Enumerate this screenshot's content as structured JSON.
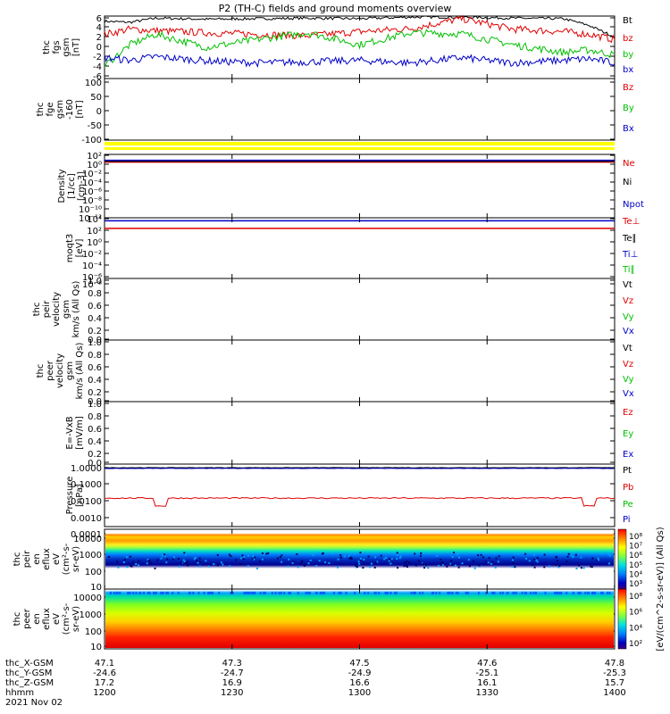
{
  "title": "P2 (TH-C) fields and ground moments overview",
  "date_label": "2021 Nov 02",
  "chart_data": [
    {
      "type": "line",
      "ylabel": [
        "thc",
        "fgs",
        "gsm",
        "[nT]"
      ],
      "y_ticks": [
        "6",
        "4",
        "2",
        "0",
        "-2",
        "-4",
        "-6"
      ],
      "ylim": [
        -6,
        6
      ],
      "legend": [
        "Bt",
        "bz",
        "by",
        "bx"
      ],
      "colors": [
        "#000000",
        "#e00000",
        "#00c000",
        "#0000c8"
      ],
      "series": [
        {
          "name": "Bt",
          "x": [
            0,
            0.05,
            0.1,
            0.2,
            0.3,
            0.4,
            0.5,
            0.6,
            0.7,
            0.8,
            0.9,
            0.95,
            1
          ],
          "values": [
            5.0,
            4.8,
            5.6,
            5.4,
            5.5,
            5.6,
            5.5,
            5.8,
            5.8,
            5.6,
            5.5,
            4.2,
            2.0
          ]
        },
        {
          "name": "bz",
          "x": [
            0,
            0.05,
            0.1,
            0.2,
            0.3,
            0.4,
            0.5,
            0.6,
            0.7,
            0.8,
            0.9,
            0.95,
            1
          ],
          "values": [
            2.5,
            3.5,
            3.2,
            2.8,
            2.5,
            2.2,
            3.0,
            3.6,
            5.5,
            3.5,
            3.0,
            2.5,
            1.5
          ]
        },
        {
          "name": "by",
          "x": [
            0,
            0.05,
            0.1,
            0.2,
            0.3,
            0.4,
            0.5,
            0.6,
            0.7,
            0.8,
            0.9,
            0.95,
            1
          ],
          "values": [
            -3.5,
            0.5,
            2.5,
            0.0,
            1.5,
            2.8,
            0.5,
            2.8,
            2.6,
            0.5,
            -1.0,
            -0.5,
            -1.5
          ]
        },
        {
          "name": "bx",
          "x": [
            0,
            0.05,
            0.1,
            0.2,
            0.3,
            0.4,
            0.5,
            0.6,
            0.7,
            0.8,
            0.9,
            0.95,
            1
          ],
          "values": [
            -2.0,
            -2.5,
            -1.8,
            -2.6,
            -3.0,
            -2.8,
            -2.5,
            -3.0,
            -2.0,
            -3.0,
            -2.5,
            -2.2,
            -3.0
          ]
        }
      ]
    },
    {
      "type": "line",
      "ylabel": [
        "thc",
        "fge",
        "gsm",
        "-160",
        "[nT]"
      ],
      "y_ticks": [
        "100",
        "50",
        "0",
        "-50",
        "-100"
      ],
      "ylim": [
        -130,
        100
      ],
      "legend": [
        "Bz",
        "By",
        "Bx"
      ],
      "colors": [
        "#e00000",
        "#00c000",
        "#0000c8"
      ],
      "series": []
    },
    {
      "type": "line",
      "ylabel": [
        "Density",
        "[1/cc]",
        "[cm-3]"
      ],
      "y_ticks": [
        "10²",
        "10⁰",
        "10⁻²",
        "10⁻⁴",
        "10⁻⁶",
        "10⁻⁸",
        "10⁻¹⁰",
        "10⁻¹²"
      ],
      "legend": [
        "Ne",
        "Ni",
        "Npot"
      ],
      "colors": [
        "#e00000",
        "#000000",
        "#0000c8"
      ],
      "series": [
        {
          "name": "Ne",
          "value_log10": 0.3
        },
        {
          "name": "Ni",
          "value_log10": 0.5
        },
        {
          "name": "Npot",
          "value_log10": 0.7
        }
      ]
    },
    {
      "type": "line",
      "ylabel": [
        "moqt3",
        "[eV]"
      ],
      "y_ticks": [
        "10⁴",
        "10²",
        "10⁰",
        "10⁻²",
        "10⁻⁴",
        "10⁻⁶",
        "10⁻⁸"
      ],
      "legend": [
        "Te⊥",
        "Te∥",
        "Ti⊥",
        "Ti∥"
      ],
      "colors": [
        "#e00000",
        "#000000",
        "#0000c8",
        "#00c000"
      ],
      "series": [
        {
          "name": "Te⊥",
          "value_log10": 1.9
        },
        {
          "name": "Ti⊥",
          "value_log10": 3.4
        }
      ]
    },
    {
      "type": "line",
      "ylabel": [
        "thc",
        "peir",
        "velocity",
        "gsm",
        "km/s (All Qs)"
      ],
      "y_ticks": [
        "1.0",
        "0.8",
        "0.6",
        "0.4",
        "0.2",
        "0.0"
      ],
      "ylim": [
        0,
        1
      ],
      "legend": [
        "Vt",
        "Vz",
        "Vy",
        "Vx"
      ],
      "colors": [
        "#000000",
        "#e00000",
        "#00c000",
        "#0000c8"
      ],
      "series": []
    },
    {
      "type": "line",
      "ylabel": [
        "thc",
        "peer",
        "velocity",
        "gsm",
        "km/s (All Qs)"
      ],
      "y_ticks": [
        "1.0",
        "0.8",
        "0.6",
        "0.4",
        "0.2",
        "0.0"
      ],
      "ylim": [
        0,
        1
      ],
      "legend": [
        "Vt",
        "Vz",
        "Vy",
        "Vx"
      ],
      "colors": [
        "#000000",
        "#e00000",
        "#00c000",
        "#0000c8"
      ],
      "series": []
    },
    {
      "type": "line",
      "ylabel": [
        "E=-VxB",
        "[mV/m]"
      ],
      "y_ticks": [
        "1.0",
        "0.8",
        "0.6",
        "0.4",
        "0.2",
        "0.0"
      ],
      "ylim": [
        0,
        1
      ],
      "legend": [
        "Ez",
        "Ey",
        "Ex"
      ],
      "colors": [
        "#e00000",
        "#00c000",
        "#0000c8"
      ],
      "series": []
    },
    {
      "type": "line",
      "ylabel": [
        "Pressure",
        "[nPa]"
      ],
      "y_ticks": [
        "1.0000",
        "0.1000",
        "0.0100",
        "0.0010",
        "0.0001"
      ],
      "legend": [
        "Pt",
        "Pb",
        "Pe",
        "Pi"
      ],
      "colors": [
        "#000000",
        "#e00000",
        "#00c000",
        "#0000c8"
      ],
      "series": [
        {
          "name": "Pt",
          "value_log10": 0.0
        },
        {
          "name": "Pb",
          "value_log10": -1.95
        },
        {
          "name": "Pi",
          "value_log10": -0.05
        }
      ]
    },
    {
      "type": "heatmap",
      "ylabel": [
        "thc",
        "peir",
        "en",
        "eflux",
        "eV",
        "(cm²-s-",
        "sr-eV)"
      ],
      "y_ticks": [
        "10000",
        "1000",
        "100",
        "10"
      ],
      "colorbar_label": "[eV/(cm^2-s-sr-eV)] (All Qs)",
      "colorbar_ticks": [
        "10⁸",
        "10⁷",
        "10⁶",
        "10⁵",
        "10⁴",
        "10³"
      ]
    },
    {
      "type": "heatmap",
      "ylabel": [
        "thc",
        "peer",
        "en",
        "eflux",
        "eV",
        "(cm²-s-",
        "sr-eV)"
      ],
      "y_ticks": [
        "10000",
        "1000",
        "100",
        "10"
      ],
      "colorbar_label": "[eV/(cm^2-s-sr-eV)] (All Qs)",
      "colorbar_ticks": [
        "10⁸",
        "10⁶",
        "10⁴",
        "10²"
      ]
    }
  ],
  "x_axis": {
    "row_labels": [
      "thc_X-GSM",
      "thc_Y-GSM",
      "thc_Z-GSM",
      "hhmm"
    ],
    "ticks": [
      {
        "values": [
          "47.1",
          "-24.6",
          "17.2",
          "1200"
        ]
      },
      {
        "values": [
          "47.3",
          "-24.7",
          "16.9",
          "1230"
        ]
      },
      {
        "values": [
          "47.5",
          "-24.9",
          "16.6",
          "1300"
        ]
      },
      {
        "values": [
          "47.6",
          "-25.1",
          "16.1",
          "1330"
        ]
      },
      {
        "values": [
          "47.8",
          "-25.3",
          "15.7",
          "1400"
        ]
      }
    ]
  }
}
